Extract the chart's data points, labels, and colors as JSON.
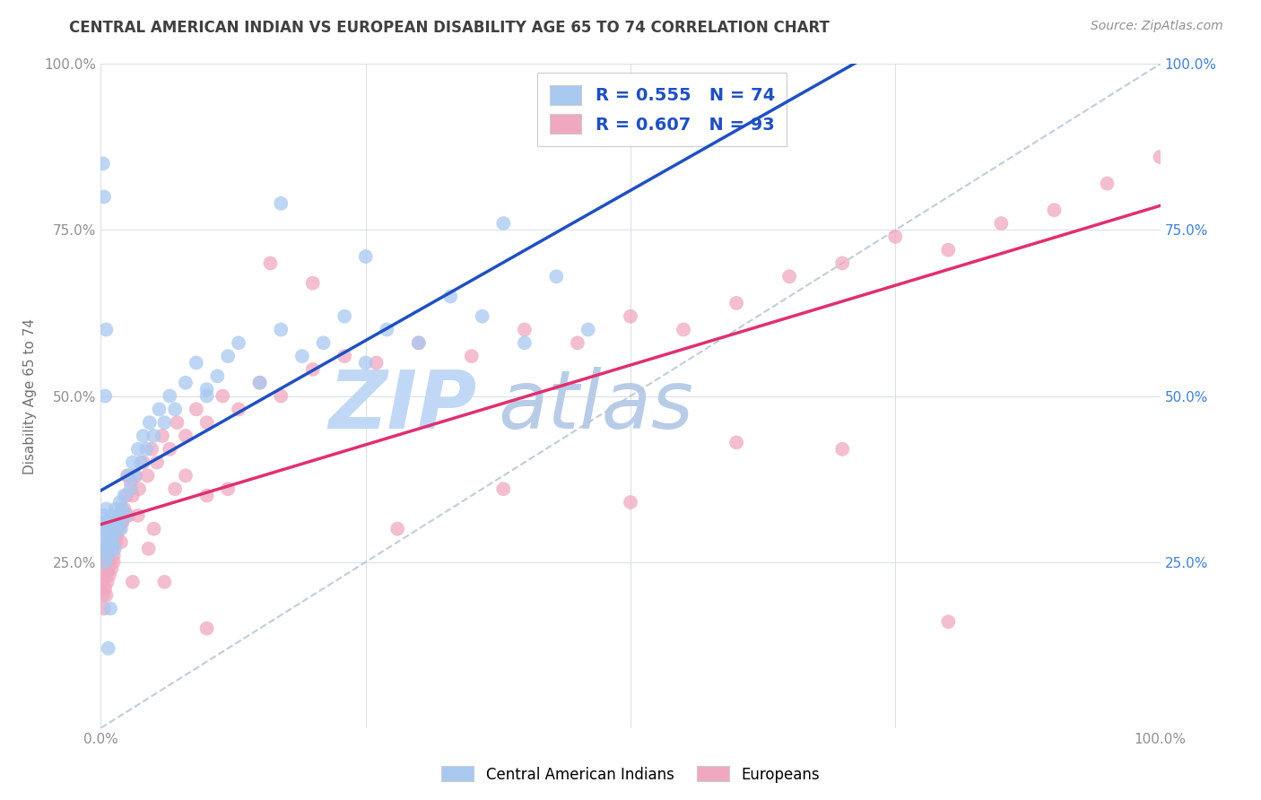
{
  "title": "CENTRAL AMERICAN INDIAN VS EUROPEAN DISABILITY AGE 65 TO 74 CORRELATION CHART",
  "source": "Source: ZipAtlas.com",
  "ylabel": "Disability Age 65 to 74",
  "legend_labels": [
    "Central American Indians",
    "Europeans"
  ],
  "blue_color": "#a8c8f0",
  "pink_color": "#f0a8c0",
  "blue_line_color": "#2050c0",
  "pink_line_color": "#e03070",
  "dashed_line_color": "#b8c8d8",
  "title_color": "#404040",
  "source_color": "#909090",
  "y_tick_color_left": "#909090",
  "y_tick_color_right": "#4080d0",
  "x_tick_color": "#909090",
  "R_blue": 0.555,
  "N_blue": 74,
  "R_pink": 0.607,
  "N_pink": 93,
  "legend_R_N_color": "#2050c0",
  "grid_color": "#d8dde8",
  "blue_x": [
    0.001,
    0.002,
    0.003,
    0.003,
    0.004,
    0.004,
    0.005,
    0.005,
    0.006,
    0.006,
    0.007,
    0.007,
    0.008,
    0.008,
    0.009,
    0.009,
    0.01,
    0.01,
    0.011,
    0.012,
    0.013,
    0.013,
    0.014,
    0.015,
    0.016,
    0.017,
    0.018,
    0.019,
    0.02,
    0.022,
    0.024,
    0.026,
    0.028,
    0.03,
    0.032,
    0.035,
    0.038,
    0.04,
    0.043,
    0.046,
    0.05,
    0.055,
    0.06,
    0.065,
    0.07,
    0.08,
    0.09,
    0.1,
    0.11,
    0.12,
    0.13,
    0.15,
    0.17,
    0.19,
    0.21,
    0.23,
    0.25,
    0.27,
    0.3,
    0.33,
    0.36,
    0.4,
    0.43,
    0.46,
    0.1,
    0.17,
    0.25,
    0.38,
    0.002,
    0.003,
    0.004,
    0.005,
    0.007,
    0.009
  ],
  "blue_y": [
    0.3,
    0.27,
    0.28,
    0.32,
    0.25,
    0.31,
    0.29,
    0.33,
    0.27,
    0.3,
    0.26,
    0.31,
    0.28,
    0.3,
    0.27,
    0.29,
    0.28,
    0.32,
    0.3,
    0.29,
    0.31,
    0.27,
    0.33,
    0.3,
    0.32,
    0.31,
    0.34,
    0.3,
    0.33,
    0.35,
    0.32,
    0.38,
    0.36,
    0.4,
    0.38,
    0.42,
    0.4,
    0.44,
    0.42,
    0.46,
    0.44,
    0.48,
    0.46,
    0.5,
    0.48,
    0.52,
    0.55,
    0.5,
    0.53,
    0.56,
    0.58,
    0.52,
    0.6,
    0.56,
    0.58,
    0.62,
    0.55,
    0.6,
    0.58,
    0.65,
    0.62,
    0.58,
    0.68,
    0.6,
    0.51,
    0.79,
    0.71,
    0.76,
    0.85,
    0.8,
    0.5,
    0.6,
    0.12,
    0.18
  ],
  "pink_x": [
    0.001,
    0.002,
    0.003,
    0.003,
    0.004,
    0.004,
    0.005,
    0.005,
    0.006,
    0.006,
    0.007,
    0.007,
    0.008,
    0.008,
    0.009,
    0.009,
    0.01,
    0.01,
    0.011,
    0.012,
    0.013,
    0.014,
    0.015,
    0.016,
    0.017,
    0.018,
    0.019,
    0.02,
    0.022,
    0.024,
    0.026,
    0.028,
    0.03,
    0.033,
    0.036,
    0.04,
    0.044,
    0.048,
    0.053,
    0.058,
    0.065,
    0.072,
    0.08,
    0.09,
    0.1,
    0.115,
    0.13,
    0.15,
    0.17,
    0.2,
    0.23,
    0.26,
    0.3,
    0.35,
    0.4,
    0.45,
    0.5,
    0.55,
    0.6,
    0.65,
    0.7,
    0.75,
    0.8,
    0.85,
    0.9,
    0.95,
    1.0,
    0.12,
    0.16,
    0.2,
    0.28,
    0.38,
    0.5,
    0.6,
    0.7,
    0.8,
    0.03,
    0.05,
    0.07,
    0.1,
    0.003,
    0.005,
    0.007,
    0.009,
    0.012,
    0.015,
    0.02,
    0.025,
    0.035,
    0.045,
    0.06,
    0.08,
    0.1
  ],
  "pink_y": [
    0.22,
    0.2,
    0.24,
    0.26,
    0.21,
    0.25,
    0.23,
    0.27,
    0.22,
    0.26,
    0.24,
    0.28,
    0.23,
    0.27,
    0.25,
    0.29,
    0.24,
    0.28,
    0.27,
    0.26,
    0.3,
    0.28,
    0.29,
    0.31,
    0.3,
    0.32,
    0.28,
    0.31,
    0.33,
    0.35,
    0.32,
    0.37,
    0.35,
    0.38,
    0.36,
    0.4,
    0.38,
    0.42,
    0.4,
    0.44,
    0.42,
    0.46,
    0.44,
    0.48,
    0.46,
    0.5,
    0.48,
    0.52,
    0.5,
    0.54,
    0.56,
    0.55,
    0.58,
    0.56,
    0.6,
    0.58,
    0.62,
    0.6,
    0.64,
    0.68,
    0.7,
    0.74,
    0.72,
    0.76,
    0.78,
    0.82,
    0.86,
    0.36,
    0.7,
    0.67,
    0.3,
    0.36,
    0.34,
    0.43,
    0.42,
    0.16,
    0.22,
    0.3,
    0.36,
    0.35,
    0.18,
    0.2,
    0.25,
    0.27,
    0.25,
    0.29,
    0.31,
    0.38,
    0.32,
    0.27,
    0.22,
    0.38,
    0.15
  ]
}
